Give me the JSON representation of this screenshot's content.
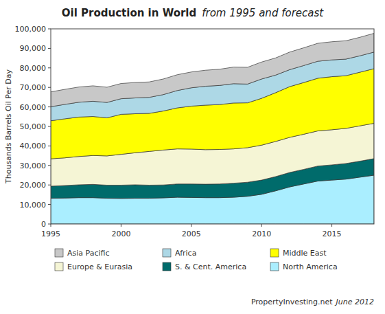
{
  "chart_data": {
    "type": "area",
    "stacked": true,
    "title": "Oil Production in World",
    "subtitle": "from 1995 and forecast",
    "y_label": "Thousands Barrels Oil Per Day",
    "annotations": [
      "PropertyInvesting.net",
      "June 2012"
    ],
    "x": [
      1995,
      1996,
      1997,
      1998,
      1999,
      2000,
      2001,
      2002,
      2003,
      2004,
      2005,
      2006,
      2007,
      2008,
      2009,
      2010,
      2011,
      2012,
      2013,
      2014,
      2015,
      2016,
      2017,
      2018
    ],
    "series": [
      {
        "name": "North America",
        "color": "#aaeeff",
        "values": [
          13200,
          13300,
          13500,
          13500,
          13200,
          13100,
          13200,
          13200,
          13400,
          13700,
          13600,
          13500,
          13500,
          13700,
          14200,
          15200,
          17000,
          19000,
          20500,
          22000,
          22500,
          23000,
          24000,
          25000
        ]
      },
      {
        "name": "S. & Cent. America",
        "color": "#006b6b",
        "values": [
          6200,
          6400,
          6600,
          6800,
          6700,
          6800,
          6900,
          6700,
          6600,
          6800,
          6900,
          6900,
          7000,
          7200,
          7200,
          7300,
          7300,
          7400,
          7500,
          7700,
          7800,
          8000,
          8200,
          8500
        ]
      },
      {
        "name": "Europe & Eurasia",
        "color": "#f5f5d5",
        "values": [
          14000,
          14200,
          14500,
          14800,
          15000,
          15800,
          16400,
          17300,
          17900,
          18000,
          17900,
          17700,
          17700,
          17600,
          17700,
          17900,
          18000,
          18000,
          18000,
          18000,
          18000,
          18000,
          18100,
          18100
        ]
      },
      {
        "name": "Middle East",
        "color": "#ffff00",
        "values": [
          19500,
          20000,
          20200,
          20000,
          19500,
          20500,
          20000,
          19500,
          20000,
          21000,
          22000,
          22800,
          23000,
          23500,
          23000,
          24000,
          25000,
          26000,
          26500,
          27000,
          27200,
          27000,
          27500,
          28000
        ]
      },
      {
        "name": "Africa",
        "color": "#add8e6",
        "values": [
          7200,
          7400,
          7600,
          7800,
          7900,
          8000,
          8100,
          8200,
          8400,
          8900,
          9400,
          9700,
          9800,
          9900,
          9600,
          9900,
          9000,
          8700,
          8700,
          8700,
          8600,
          8500,
          8400,
          8500
        ]
      },
      {
        "name": "Asia Pacific",
        "color": "#c8c8c8",
        "values": [
          7600,
          7700,
          7800,
          7900,
          7800,
          7800,
          7900,
          7900,
          8000,
          8100,
          8100,
          8200,
          8300,
          8500,
          8600,
          8700,
          8800,
          9000,
          9100,
          9200,
          9300,
          9400,
          9500,
          9600
        ]
      }
    ],
    "xlim": [
      1995,
      2018
    ],
    "xticks": [
      1995,
      2000,
      2005,
      2010,
      2015
    ],
    "ylim": [
      0,
      100000
    ],
    "yticks": [
      0,
      {
        "value": 10000,
        "label": "10,000"
      },
      {
        "value": 20000,
        "label": "20,000"
      },
      {
        "value": 30000,
        "label": "30,000"
      },
      {
        "value": 40000,
        "label": "40,000"
      },
      {
        "value": 50000,
        "label": "50,000"
      },
      {
        "value": 60000,
        "label": "60,000"
      },
      {
        "value": 70000,
        "label": "70,000"
      },
      {
        "value": 80000,
        "label": "80,000"
      },
      {
        "value": 90000,
        "label": "90,000"
      },
      {
        "value": 100000,
        "label": "100,000"
      }
    ],
    "grid": false,
    "legend": "bottom"
  }
}
